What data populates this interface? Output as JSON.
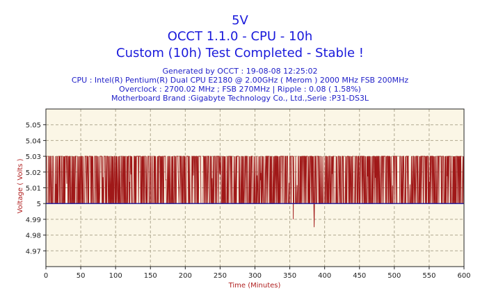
{
  "header": {
    "line1": "5V",
    "line2": "OCCT 1.1.0 - CPU - 10h",
    "line3": "Custom (10h) Test Completed - Stable !",
    "sub1": "Generated by OCCT : 19-08-08 12:25:02",
    "sub2": "CPU : Intel(R) Pentium(R) Dual  CPU  E2180  @ 2.00GHz ( Merom ) 2000 MHz FSB 200MHz",
    "sub3": "Overclock : 2700.02 MHz ; FSB 270MHz | Ripple : 0.08 ( 1.58%)",
    "sub4": "Motherboard Brand :Gigabyte Technology Co., Ltd.,Serie :P31-DS3L"
  },
  "chart_data": {
    "type": "line",
    "xlabel": "Time (Minutes)",
    "ylabel": "Voltage ( Volts )",
    "xlim": [
      0,
      600
    ],
    "ylim": [
      4.96,
      5.06
    ],
    "xticks": [
      0,
      50,
      100,
      150,
      200,
      250,
      300,
      350,
      400,
      450,
      500,
      550,
      600
    ],
    "yticks": [
      4.97,
      4.98,
      4.99,
      5.0,
      5.01,
      5.02,
      5.03,
      5.04,
      5.05
    ],
    "grid": true,
    "colors": {
      "series": "#a01818",
      "baseline": "#1a1aa0",
      "plot_bg": "#fbf6e6",
      "grid": "#b0a890",
      "axis_text": "#b02020"
    },
    "series": [
      {
        "values_summary": "Voltage oscillating between 5.00 and 5.03 V across the full 600-minute run, with dips to about 4.99 V near minute 355 and about 4.985 V near minute 385",
        "base_values": [
          5.0,
          5.03
        ],
        "dips": [
          {
            "x": 355,
            "y": 4.99
          },
          {
            "x": 385,
            "y": 4.985
          }
        ]
      }
    ]
  }
}
